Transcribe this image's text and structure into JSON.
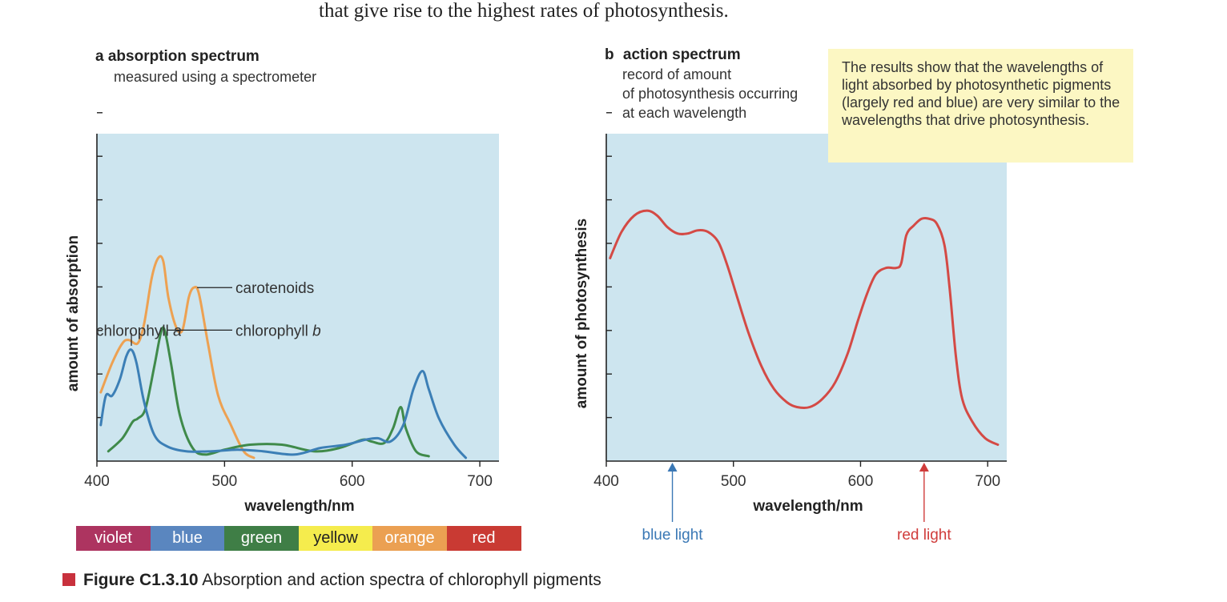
{
  "intro_text": "that give rise to the highest rates of photosynthesis.",
  "panel_a": {
    "letter": "a",
    "title": "absorption spectrum",
    "subtitle": "measured using a spectrometer"
  },
  "panel_b": {
    "letter": "b",
    "title": "action spectrum",
    "subtitle_lines": [
      "record of amount",
      "of photosynthesis occurring",
      "at each wavelength"
    ]
  },
  "note_text": "The results show that the wavelengths of light absorbed by photosynthetic pigments (largely red and blue) are very similar to the wavelengths that drive photosynthesis.",
  "spectrum_bar": [
    {
      "label": "violet",
      "color": "#ad3460",
      "text_color": "#ffffff"
    },
    {
      "label": "blue",
      "color": "#5a86bf",
      "text_color": "#ffffff"
    },
    {
      "label": "green",
      "color": "#3f7e46",
      "text_color": "#ffffff"
    },
    {
      "label": "yellow",
      "color": "#f5ec4d",
      "text_color": "#222222"
    },
    {
      "label": "orange",
      "color": "#eba052",
      "text_color": "#ffffff"
    },
    {
      "label": "red",
      "color": "#c93a33",
      "text_color": "#ffffff"
    }
  ],
  "caption": {
    "label": "Figure C1.3.10",
    "text": "Absorption and action spectra of chlorophyll pigments"
  },
  "chart_data": [
    {
      "type": "line",
      "id": "absorption",
      "title": "absorption spectrum",
      "xlabel": "wavelength/nm",
      "ylabel": "amount of absorption",
      "xlim": [
        400,
        715
      ],
      "ylim": [
        0,
        10
      ],
      "x_ticks": [
        400,
        500,
        600,
        700
      ],
      "y_tick_count": 8,
      "background": "#cde5ef",
      "series": [
        {
          "name": "carotenoids",
          "color": "#eda152",
          "points": [
            [
              403,
              2.1
            ],
            [
              412,
              3.0
            ],
            [
              420,
              3.6
            ],
            [
              425,
              3.7
            ],
            [
              432,
              3.6
            ],
            [
              437,
              4.2
            ],
            [
              443,
              5.6
            ],
            [
              448,
              6.2
            ],
            [
              452,
              6.1
            ],
            [
              456,
              5.0
            ],
            [
              462,
              4.1
            ],
            [
              467,
              4.0
            ],
            [
              472,
              5.0
            ],
            [
              476,
              5.3
            ],
            [
              480,
              5.1
            ],
            [
              487,
              3.6
            ],
            [
              495,
              2.0
            ],
            [
              505,
              1.1
            ],
            [
              515,
              0.3
            ],
            [
              523,
              0.1
            ]
          ]
        },
        {
          "name": "chlorophyll b",
          "color": "#3f8a4a",
          "points": [
            [
              409,
              0.3
            ],
            [
              420,
              0.7
            ],
            [
              428,
              1.2
            ],
            [
              432,
              1.3
            ],
            [
              438,
              1.6
            ],
            [
              445,
              2.9
            ],
            [
              450,
              3.9
            ],
            [
              453,
              4.0
            ],
            [
              458,
              3.0
            ],
            [
              465,
              1.4
            ],
            [
              475,
              0.4
            ],
            [
              485,
              0.2
            ],
            [
              500,
              0.35
            ],
            [
              520,
              0.5
            ],
            [
              545,
              0.5
            ],
            [
              570,
              0.3
            ],
            [
              590,
              0.4
            ],
            [
              608,
              0.65
            ],
            [
              615,
              0.6
            ],
            [
              625,
              0.55
            ],
            [
              632,
              1.0
            ],
            [
              638,
              1.65
            ],
            [
              642,
              1.0
            ],
            [
              650,
              0.3
            ],
            [
              660,
              0.15
            ]
          ]
        },
        {
          "name": "chlorophyll a",
          "color": "#3c7fb6",
          "points": [
            [
              403,
              1.1
            ],
            [
              407,
              2.0
            ],
            [
              412,
              2.0
            ],
            [
              418,
              2.5
            ],
            [
              423,
              3.2
            ],
            [
              427,
              3.4
            ],
            [
              431,
              3.0
            ],
            [
              437,
              1.8
            ],
            [
              445,
              0.8
            ],
            [
              455,
              0.45
            ],
            [
              470,
              0.3
            ],
            [
              490,
              0.3
            ],
            [
              510,
              0.35
            ],
            [
              530,
              0.3
            ],
            [
              555,
              0.2
            ],
            [
              575,
              0.4
            ],
            [
              595,
              0.5
            ],
            [
              610,
              0.65
            ],
            [
              620,
              0.7
            ],
            [
              630,
              0.6
            ],
            [
              640,
              1.1
            ],
            [
              648,
              2.2
            ],
            [
              655,
              2.75
            ],
            [
              660,
              2.2
            ],
            [
              668,
              1.3
            ],
            [
              680,
              0.5
            ],
            [
              689,
              0.1
            ]
          ]
        }
      ],
      "annotations": [
        {
          "text": "carotenoids",
          "target": "carotenoids"
        },
        {
          "text_main": "chlorophyll ",
          "text_italic": "b",
          "target": "chlorophyll b"
        },
        {
          "text_main": "chlorophyll ",
          "text_italic": "a",
          "target": "chlorophyll a"
        }
      ]
    },
    {
      "type": "line",
      "id": "action",
      "title": "action spectrum",
      "xlabel": "wavelength/nm",
      "ylabel": "amount of photosynthesis",
      "xlim": [
        400,
        715
      ],
      "ylim": [
        0,
        10
      ],
      "x_ticks": [
        400,
        500,
        600,
        700
      ],
      "y_tick_count": 8,
      "background": "#cde5ef",
      "series": [
        {
          "name": "rate of photosynthesis",
          "color": "#d44a45",
          "points": [
            [
              403,
              6.2
            ],
            [
              412,
              7.0
            ],
            [
              422,
              7.5
            ],
            [
              432,
              7.65
            ],
            [
              440,
              7.5
            ],
            [
              448,
              7.15
            ],
            [
              456,
              6.95
            ],
            [
              464,
              6.95
            ],
            [
              472,
              7.05
            ],
            [
              480,
              7.0
            ],
            [
              488,
              6.7
            ],
            [
              495,
              6.0
            ],
            [
              503,
              5.0
            ],
            [
              512,
              3.9
            ],
            [
              522,
              2.9
            ],
            [
              532,
              2.2
            ],
            [
              542,
              1.8
            ],
            [
              550,
              1.65
            ],
            [
              560,
              1.65
            ],
            [
              570,
              1.9
            ],
            [
              580,
              2.4
            ],
            [
              590,
              3.3
            ],
            [
              598,
              4.3
            ],
            [
              605,
              5.1
            ],
            [
              612,
              5.7
            ],
            [
              620,
              5.9
            ],
            [
              628,
              5.9
            ],
            [
              632,
              6.05
            ],
            [
              636,
              6.9
            ],
            [
              642,
              7.2
            ],
            [
              648,
              7.4
            ],
            [
              654,
              7.4
            ],
            [
              660,
              7.25
            ],
            [
              666,
              6.6
            ],
            [
              670,
              5.3
            ],
            [
              675,
              3.2
            ],
            [
              680,
              1.9
            ],
            [
              688,
              1.2
            ],
            [
              698,
              0.7
            ],
            [
              708,
              0.5
            ]
          ]
        }
      ],
      "markers": [
        {
          "label": "blue light",
          "wavelength": 452,
          "color": "#3a78b5"
        },
        {
          "label": "red light",
          "wavelength": 650,
          "color": "#d03c3b"
        }
      ]
    }
  ]
}
